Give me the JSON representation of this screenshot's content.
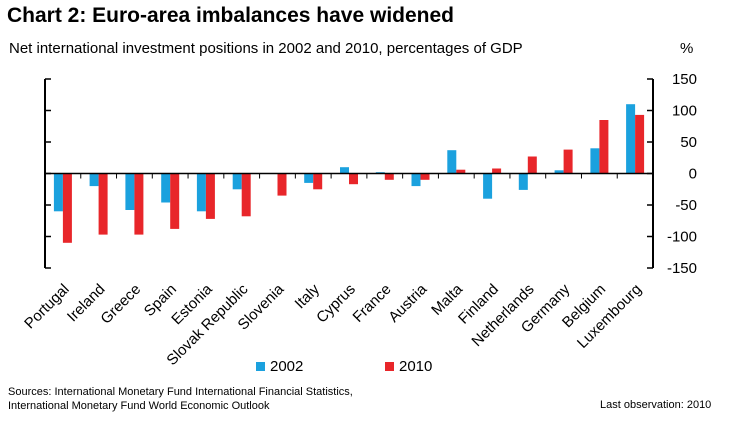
{
  "title": "Chart 2: Euro-area imbalances have widened",
  "subtitle": "Net international investment positions in 2002 and 2010, percentages of GDP",
  "unit": "%",
  "sources": [
    "Sources: International Monetary Fund International Financial Statistics,",
    "International Monetary Fund World Economic Outlook"
  ],
  "last_observation": "Last observation: 2010",
  "colors": {
    "2002": "#1BA1DE",
    "2010": "#E8262A",
    "axis": "#000000"
  },
  "chart_data": {
    "type": "bar",
    "categories": [
      "Portugal",
      "Ireland",
      "Greece",
      "Spain",
      "Estonia",
      "Slovak Republic",
      "Slovenia",
      "Italy",
      "Cyprus",
      "France",
      "Austria",
      "Malta",
      "Finland",
      "Netherlands",
      "Germany",
      "Belgium",
      "Luxembourg"
    ],
    "series": [
      {
        "name": "2002",
        "values": [
          -60,
          -20,
          -58,
          -46,
          -60,
          -25,
          null,
          -15,
          10,
          2,
          -20,
          37,
          -40,
          -26,
          5,
          40,
          110
        ]
      },
      {
        "name": "2010",
        "values": [
          -110,
          -97,
          -97,
          -88,
          -72,
          -68,
          -35,
          -25,
          -17,
          -10,
          -10,
          6,
          8,
          27,
          38,
          85,
          93
        ]
      }
    ],
    "y_ticks": [
      150,
      100,
      50,
      0,
      -50,
      -100,
      -150
    ],
    "ylim": [
      -150,
      150
    ],
    "legend": "bottom-center",
    "grid": false
  }
}
